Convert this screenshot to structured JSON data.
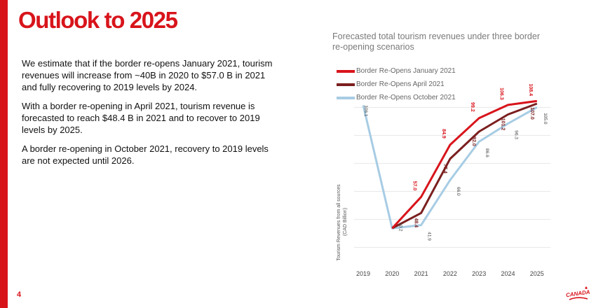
{
  "slide": {
    "title": "Outlook to 2025",
    "paragraphs": [
      "We estimate that if the border re-opens January 2021, tourism revenues will increase from ~40B in 2020 to $57.0 B in 2021 and fully recovering to 2019 levels by 2024.",
      "With a border re-opening in April 2021, tourism revenue is forecasted to reach $48.4 B in 2021 and to recover to 2019 levels by 2025.",
      "A border re-opening in October 2021, recovery to 2019 levels are not expected until 2026."
    ],
    "page_number": "4",
    "logo_text": "CANADA"
  },
  "colors": {
    "brand_red": "#d8141b",
    "jan": "#d8141b",
    "apr": "#7b1f1f",
    "oct": "#a7cce4"
  },
  "chart_data": {
    "type": "line",
    "title": "Forecasted total tourism revenues under three border re-opening scenarios",
    "ylabel": "Tourism Revenues from all sources (CAD Billion)",
    "xlabel": "",
    "categories": [
      "2019",
      "2020",
      "2021",
      "2022",
      "2023",
      "2024",
      "2025"
    ],
    "ylim": [
      20,
      110
    ],
    "grid": true,
    "legend_position": "top-left",
    "series": [
      {
        "name": "Border Re-Opens January 2021",
        "color": "#d8141b",
        "values": [
          null,
          40.2,
          57.0,
          84.9,
          99.2,
          106.3,
          108.4
        ],
        "labels": [
          null,
          "",
          "57.0",
          "84.9",
          "99.2",
          "106.3",
          "108.4"
        ]
      },
      {
        "name": "Border Re-Opens April 2021",
        "color": "#7b1f1f",
        "values": [
          null,
          40.2,
          48.4,
          77.4,
          92.0,
          101.2,
          107.0
        ],
        "labels": [
          null,
          "",
          "48.4",
          "77.4",
          "92.0",
          "101.2",
          "107.0"
        ]
      },
      {
        "name": "Border Re-Opens October 2021",
        "color": "#a7cce4",
        "values": [
          106.1,
          40.2,
          41.9,
          66.0,
          86.6,
          96.3,
          105.0
        ],
        "labels": [
          "106.1",
          "40.2",
          "41.9",
          "66.0",
          "86.6",
          "96.3",
          "105.0"
        ]
      }
    ]
  }
}
